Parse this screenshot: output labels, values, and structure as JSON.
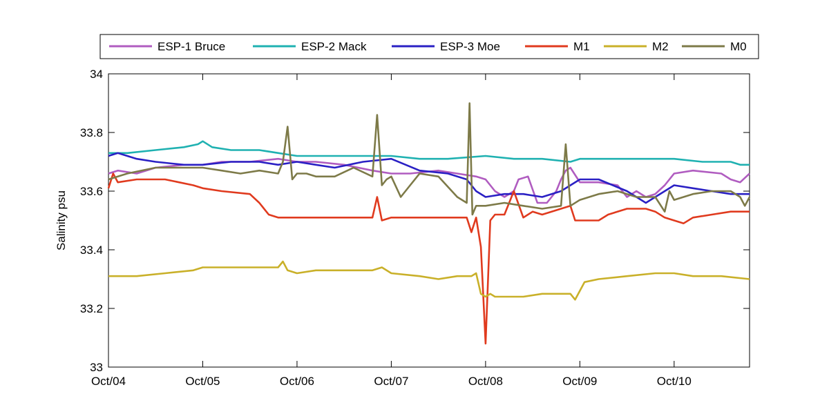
{
  "chart_data": {
    "type": "line",
    "title": "",
    "xlabel": "",
    "ylabel": "Salinity psu",
    "xlim": [
      0,
      6.8
    ],
    "ylim": [
      33,
      34
    ],
    "x_ticks": [
      0,
      1,
      2,
      3,
      4,
      5,
      6
    ],
    "x_tick_labels": [
      "Oct/04",
      "Oct/05",
      "Oct/06",
      "Oct/07",
      "Oct/08",
      "Oct/09",
      "Oct/10"
    ],
    "y_ticks": [
      33,
      33.2,
      33.4,
      33.6,
      33.8,
      34
    ],
    "y_tick_labels": [
      "33",
      "33.2",
      "33.4",
      "33.6",
      "33.8",
      "34"
    ],
    "grid": false,
    "legend_position": "top",
    "series": [
      {
        "name": "ESP-1 Bruce",
        "color": "#b05cc0",
        "x": [
          0,
          0.1,
          0.3,
          0.5,
          0.8,
          1.0,
          1.2,
          1.5,
          1.8,
          2.0,
          2.2,
          2.5,
          2.8,
          3.0,
          3.2,
          3.5,
          3.7,
          3.9,
          4.0,
          4.1,
          4.2,
          4.3,
          4.35,
          4.45,
          4.55,
          4.65,
          4.75,
          4.8,
          4.85,
          4.9,
          5.0,
          5.2,
          5.4,
          5.5,
          5.6,
          5.7,
          5.8,
          5.9,
          6.0,
          6.2,
          6.5,
          6.6,
          6.7,
          6.8
        ],
        "y": [
          33.66,
          33.67,
          33.66,
          33.68,
          33.69,
          33.69,
          33.7,
          33.7,
          33.71,
          33.7,
          33.7,
          33.69,
          33.67,
          33.66,
          33.66,
          33.67,
          33.66,
          33.65,
          33.64,
          33.6,
          33.58,
          33.6,
          33.64,
          33.65,
          33.56,
          33.56,
          33.6,
          33.64,
          33.67,
          33.68,
          33.63,
          33.63,
          33.62,
          33.58,
          33.6,
          33.58,
          33.59,
          33.62,
          33.66,
          33.67,
          33.66,
          33.64,
          33.63,
          33.66
        ]
      },
      {
        "name": "ESP-2 Mack",
        "color": "#1fb1b1",
        "x": [
          0,
          0.2,
          0.5,
          0.8,
          0.95,
          1.0,
          1.1,
          1.3,
          1.6,
          2.0,
          2.3,
          2.6,
          3.0,
          3.3,
          3.6,
          4.0,
          4.3,
          4.6,
          4.9,
          5.0,
          5.3,
          5.6,
          6.0,
          6.3,
          6.5,
          6.6,
          6.7,
          6.8
        ],
        "y": [
          33.73,
          33.73,
          33.74,
          33.75,
          33.76,
          33.77,
          33.75,
          33.74,
          33.74,
          33.72,
          33.72,
          33.72,
          33.72,
          33.71,
          33.71,
          33.72,
          33.71,
          33.71,
          33.7,
          33.71,
          33.71,
          33.71,
          33.71,
          33.7,
          33.7,
          33.7,
          33.69,
          33.69
        ]
      },
      {
        "name": "ESP-3 Moe",
        "color": "#2a20c4",
        "x": [
          0,
          0.1,
          0.3,
          0.5,
          0.8,
          1.0,
          1.3,
          1.6,
          1.8,
          2.0,
          2.2,
          2.4,
          2.7,
          3.0,
          3.3,
          3.6,
          3.8,
          3.9,
          4.0,
          4.2,
          4.4,
          4.6,
          4.8,
          5.0,
          5.2,
          5.5,
          5.7,
          5.9,
          6.0,
          6.2,
          6.4,
          6.6,
          6.8
        ],
        "y": [
          33.72,
          33.73,
          33.71,
          33.7,
          33.69,
          33.69,
          33.7,
          33.7,
          33.69,
          33.7,
          33.69,
          33.68,
          33.7,
          33.71,
          33.67,
          33.66,
          33.64,
          33.6,
          33.58,
          33.59,
          33.59,
          33.58,
          33.6,
          33.64,
          33.64,
          33.6,
          33.56,
          33.6,
          33.62,
          33.61,
          33.6,
          33.59,
          33.59
        ]
      },
      {
        "name": "M1",
        "color": "#e03a1e",
        "x": [
          0,
          0.05,
          0.1,
          0.3,
          0.6,
          0.9,
          1.0,
          1.2,
          1.5,
          1.6,
          1.7,
          1.8,
          2.0,
          2.2,
          2.5,
          2.8,
          2.85,
          2.9,
          3.0,
          3.2,
          3.5,
          3.8,
          3.85,
          3.9,
          3.95,
          4.0,
          4.05,
          4.1,
          4.2,
          4.3,
          4.4,
          4.5,
          4.6,
          4.8,
          4.9,
          4.95,
          5.1,
          5.2,
          5.3,
          5.5,
          5.6,
          5.7,
          5.8,
          5.9,
          6.0,
          6.1,
          6.2,
          6.4,
          6.6,
          6.8
        ],
        "y": [
          33.61,
          33.66,
          33.63,
          33.64,
          33.64,
          33.62,
          33.61,
          33.6,
          33.59,
          33.56,
          33.52,
          33.51,
          33.51,
          33.51,
          33.51,
          33.51,
          33.58,
          33.5,
          33.51,
          33.51,
          33.51,
          33.51,
          33.46,
          33.51,
          33.41,
          33.08,
          33.5,
          33.52,
          33.52,
          33.6,
          33.51,
          33.53,
          33.52,
          33.54,
          33.55,
          33.5,
          33.5,
          33.5,
          33.52,
          33.54,
          33.54,
          33.54,
          33.53,
          33.51,
          33.5,
          33.49,
          33.51,
          33.52,
          33.53,
          33.53
        ]
      },
      {
        "name": "M2",
        "color": "#c9b029",
        "x": [
          0,
          0.3,
          0.6,
          0.9,
          1.0,
          1.3,
          1.6,
          1.8,
          1.85,
          1.9,
          2.0,
          2.2,
          2.5,
          2.8,
          2.9,
          3.0,
          3.3,
          3.5,
          3.7,
          3.85,
          3.9,
          3.95,
          4.0,
          4.05,
          4.1,
          4.2,
          4.4,
          4.6,
          4.8,
          4.9,
          4.95,
          5.05,
          5.2,
          5.5,
          5.8,
          6.0,
          6.2,
          6.5,
          6.8
        ],
        "y": [
          33.31,
          33.31,
          33.32,
          33.33,
          33.34,
          33.34,
          33.34,
          33.34,
          33.36,
          33.33,
          33.32,
          33.33,
          33.33,
          33.33,
          33.34,
          33.32,
          33.31,
          33.3,
          33.31,
          33.31,
          33.32,
          33.25,
          33.24,
          33.25,
          33.24,
          33.24,
          33.24,
          33.25,
          33.25,
          33.25,
          33.23,
          33.29,
          33.3,
          33.31,
          33.32,
          33.32,
          33.31,
          33.31,
          33.3
        ]
      },
      {
        "name": "M0",
        "color": "#7d7a48",
        "x": [
          0,
          0.2,
          0.5,
          0.8,
          1.0,
          1.2,
          1.4,
          1.6,
          1.8,
          1.85,
          1.9,
          1.95,
          2.0,
          2.1,
          2.2,
          2.4,
          2.6,
          2.8,
          2.85,
          2.9,
          2.95,
          3.0,
          3.1,
          3.2,
          3.3,
          3.5,
          3.7,
          3.8,
          3.83,
          3.86,
          3.9,
          4.0,
          4.2,
          4.4,
          4.6,
          4.8,
          4.85,
          4.9,
          5.0,
          5.2,
          5.4,
          5.6,
          5.8,
          5.9,
          5.95,
          6.0,
          6.2,
          6.4,
          6.6,
          6.7,
          6.75,
          6.8
        ],
        "y": [
          33.64,
          33.66,
          33.68,
          33.68,
          33.68,
          33.67,
          33.66,
          33.67,
          33.66,
          33.7,
          33.82,
          33.64,
          33.66,
          33.66,
          33.65,
          33.65,
          33.68,
          33.65,
          33.86,
          33.62,
          33.64,
          33.65,
          33.58,
          33.62,
          33.66,
          33.65,
          33.58,
          33.56,
          33.9,
          33.52,
          33.55,
          33.55,
          33.56,
          33.55,
          33.54,
          33.55,
          33.76,
          33.55,
          33.57,
          33.59,
          33.6,
          33.58,
          33.58,
          33.53,
          33.6,
          33.57,
          33.59,
          33.6,
          33.6,
          33.58,
          33.55,
          33.58
        ]
      }
    ]
  }
}
